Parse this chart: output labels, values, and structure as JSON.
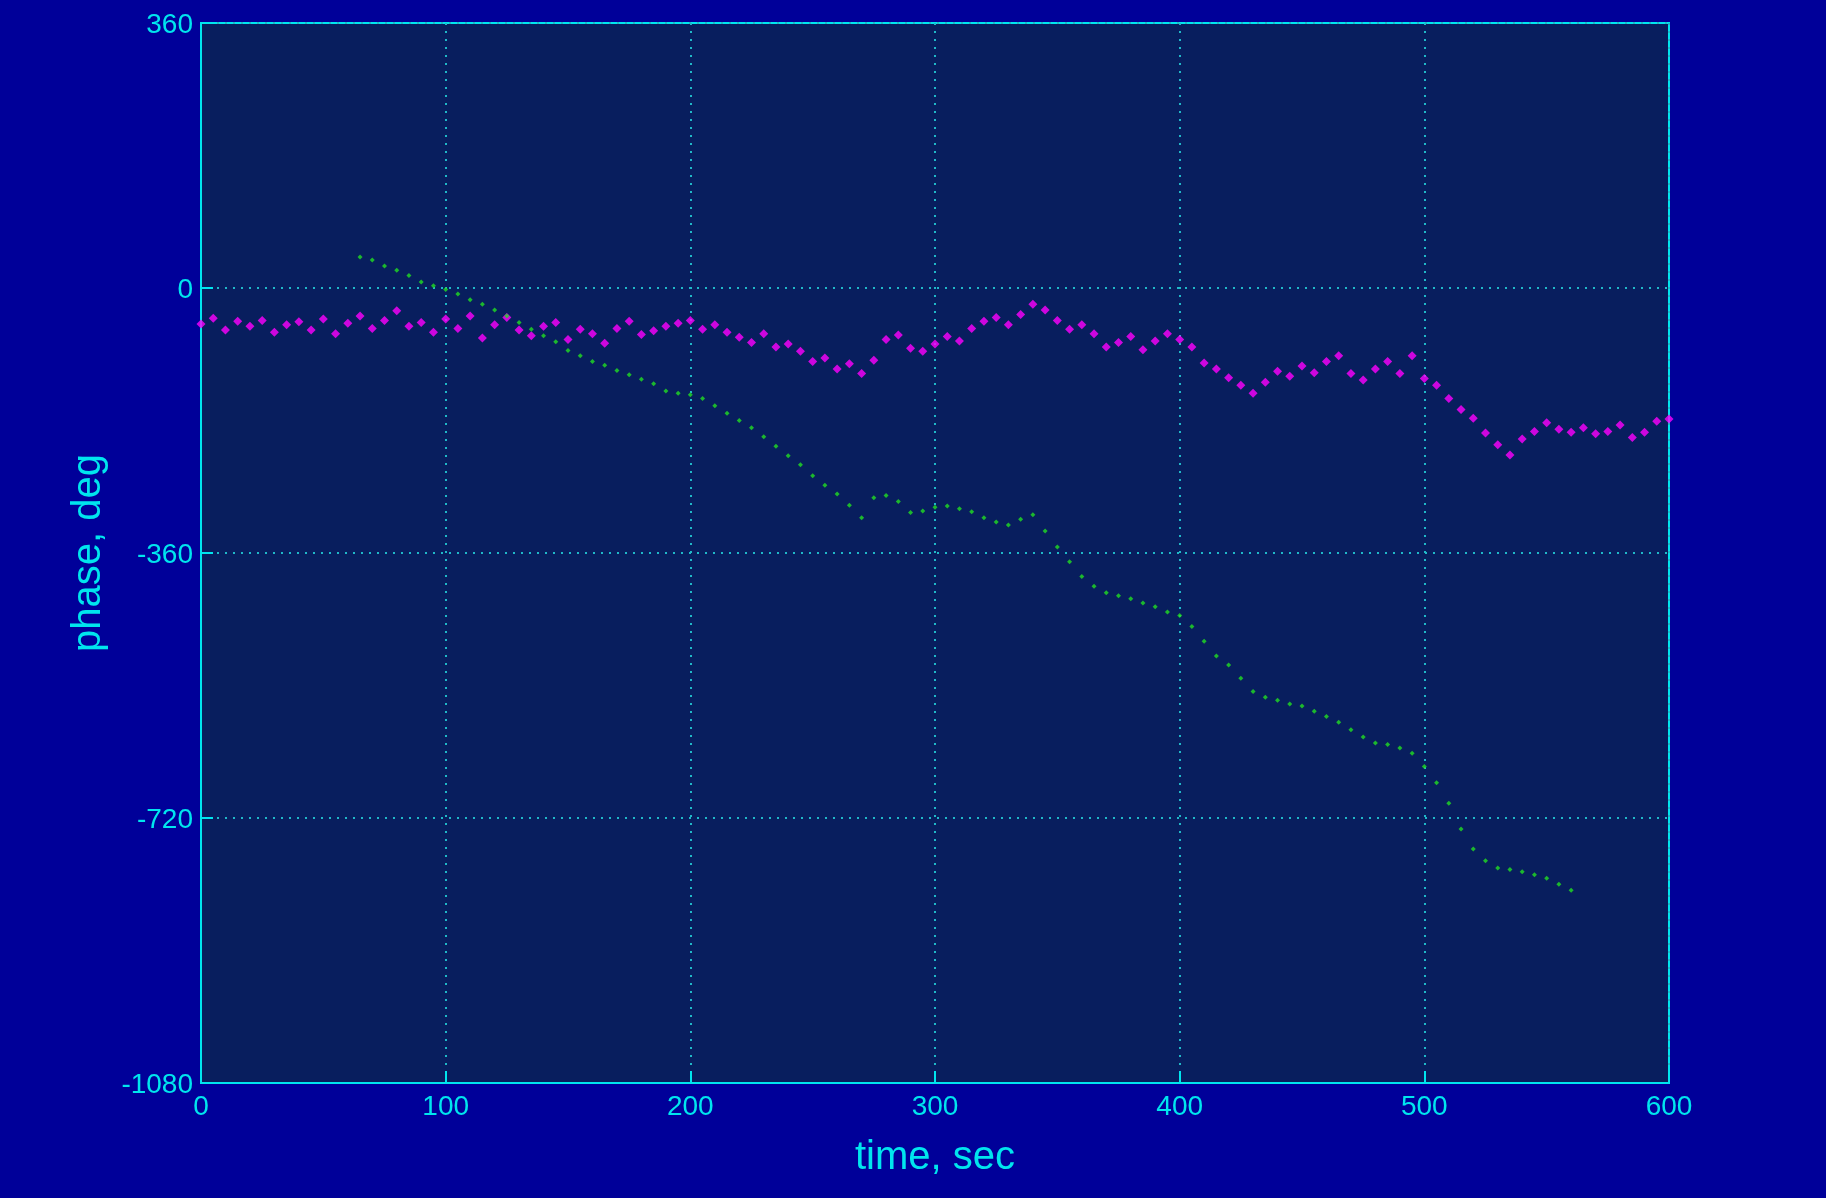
{
  "chart_data": {
    "type": "scatter",
    "xlabel": "time, sec",
    "ylabel": "phase, deg",
    "xlim": [
      0,
      600
    ],
    "xticks": [
      0,
      100,
      200,
      300,
      400,
      500,
      600
    ],
    "ylim": [
      -1080,
      360
    ],
    "yticks": [
      -1080,
      -720,
      -360,
      0,
      360
    ],
    "grid": true,
    "marker": "diamond",
    "series": [
      {
        "color": "#ff00ff",
        "x": [
          0,
          5,
          10,
          15,
          20,
          25,
          30,
          35,
          40,
          45,
          50,
          55,
          60,
          65,
          70,
          75,
          80,
          85,
          90,
          95,
          100,
          105,
          110,
          115,
          120,
          125,
          130,
          135,
          140,
          145,
          150,
          155,
          160,
          165,
          170,
          175,
          180,
          185,
          190,
          195,
          200,
          205,
          210,
          215,
          220,
          225,
          230,
          235,
          240,
          245,
          250,
          255,
          260,
          265,
          270,
          275,
          280,
          285,
          290,
          295,
          300,
          305,
          310,
          315,
          320,
          325,
          330,
          335,
          340,
          345,
          350,
          355,
          360,
          365,
          370,
          375,
          380,
          385,
          390,
          395,
          400,
          405,
          410,
          415,
          420,
          425,
          430,
          435,
          440,
          445,
          450,
          455,
          460,
          465,
          470,
          475,
          480,
          485,
          490,
          495,
          500,
          505,
          510,
          515,
          520,
          525,
          530,
          535,
          540,
          545,
          550,
          555,
          560,
          565,
          570,
          575,
          580,
          585,
          590,
          595,
          600
        ],
        "values": [
          -49,
          -41,
          -57,
          -45,
          -52,
          -44,
          -60,
          -50,
          -46,
          -57,
          -42,
          -62,
          -48,
          -38,
          -55,
          -44,
          -31,
          -52,
          -47,
          -60,
          -42,
          -55,
          -38,
          -68,
          -50,
          -40,
          -57,
          -65,
          -52,
          -47,
          -70,
          -56,
          -62,
          -75,
          -55,
          -45,
          -63,
          -58,
          -52,
          -48,
          -44,
          -56,
          -50,
          -60,
          -67,
          -74,
          -62,
          -80,
          -76,
          -86,
          -100,
          -95,
          -110,
          -103,
          -116,
          -98,
          -70,
          -64,
          -82,
          -86,
          -76,
          -66,
          -72,
          -55,
          -45,
          -40,
          -50,
          -36,
          -22,
          -30,
          -44,
          -56,
          -50,
          -62,
          -80,
          -74,
          -66,
          -84,
          -72,
          -62,
          -70,
          -80,
          -102,
          -110,
          -122,
          -132,
          -143,
          -128,
          -113,
          -120,
          -106,
          -115,
          -100,
          -92,
          -116,
          -125,
          -110,
          -100,
          -116,
          -92,
          -123,
          -132,
          -150,
          -165,
          -177,
          -197,
          -213,
          -227,
          -205,
          -195,
          -183,
          -192,
          -196,
          -190,
          -198,
          -195,
          -186,
          -203,
          -196,
          -181,
          -178
        ]
      },
      {
        "color": "#22dd22",
        "x": [
          65,
          70,
          75,
          80,
          85,
          90,
          95,
          100,
          105,
          110,
          115,
          120,
          125,
          130,
          135,
          140,
          145,
          150,
          155,
          160,
          165,
          170,
          175,
          180,
          185,
          190,
          195,
          200,
          205,
          210,
          215,
          220,
          225,
          230,
          235,
          240,
          245,
          250,
          255,
          260,
          265,
          270,
          275,
          280,
          285,
          290,
          295,
          300,
          305,
          310,
          315,
          320,
          325,
          330,
          335,
          340,
          345,
          350,
          355,
          360,
          365,
          370,
          375,
          380,
          385,
          390,
          395,
          400,
          405,
          410,
          415,
          420,
          425,
          430,
          435,
          440,
          445,
          450,
          455,
          460,
          465,
          470,
          475,
          480,
          485,
          490,
          495,
          500,
          505,
          510,
          515,
          520,
          525,
          530,
          535,
          540,
          545,
          550,
          555,
          560
        ],
        "values": [
          42,
          38,
          30,
          24,
          17,
          8,
          3,
          -2,
          -8,
          -16,
          -22,
          -30,
          -38,
          -47,
          -56,
          -65,
          -73,
          -85,
          -92,
          -100,
          -105,
          -112,
          -118,
          -124,
          -130,
          -140,
          -143,
          -145,
          -150,
          -160,
          -170,
          -180,
          -190,
          -202,
          -215,
          -228,
          -240,
          -255,
          -268,
          -280,
          -295,
          -312,
          -285,
          -282,
          -290,
          -305,
          -303,
          -298,
          -296,
          -300,
          -304,
          -312,
          -318,
          -322,
          -314,
          -308,
          -330,
          -352,
          -372,
          -392,
          -405,
          -414,
          -418,
          -422,
          -428,
          -433,
          -440,
          -445,
          -460,
          -480,
          -500,
          -512,
          -530,
          -548,
          -556,
          -560,
          -565,
          -568,
          -575,
          -582,
          -590,
          -600,
          -610,
          -618,
          -620,
          -625,
          -632,
          -650,
          -672,
          -700,
          -735,
          -762,
          -778,
          -788,
          -790,
          -793,
          -797,
          -802,
          -810,
          -818
        ]
      }
    ]
  }
}
